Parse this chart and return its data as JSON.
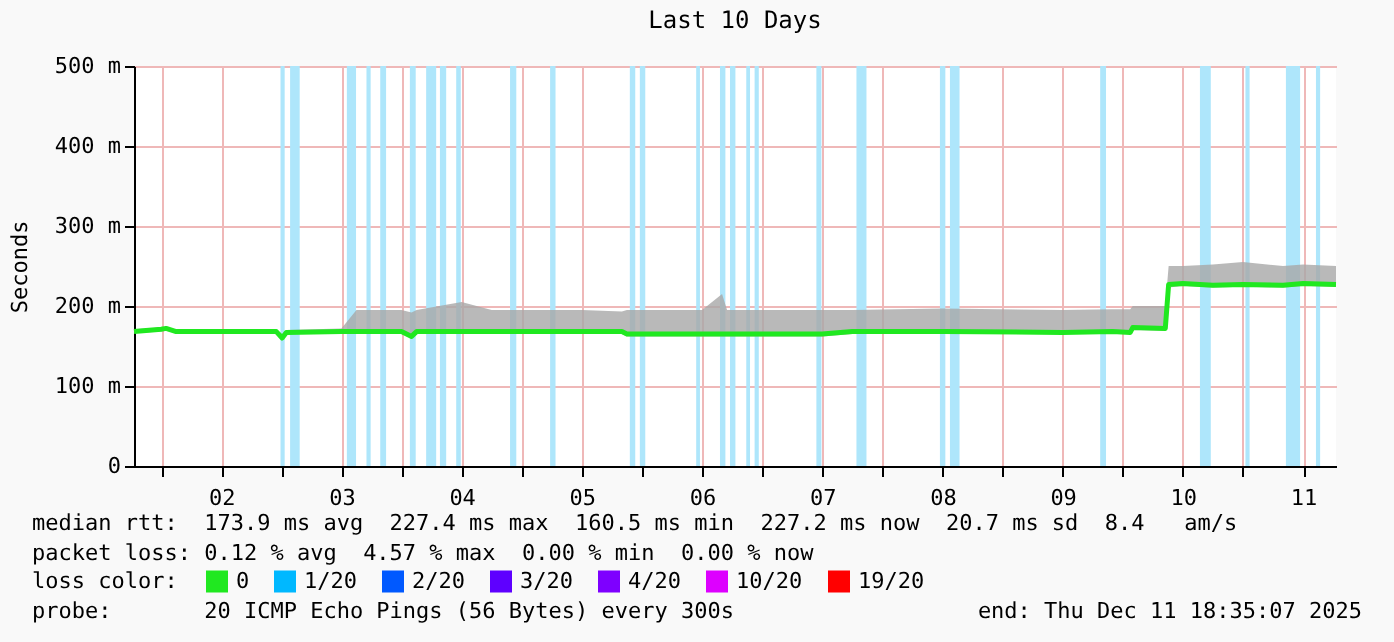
{
  "chart_data": {
    "type": "line",
    "title": "Last 10 Days",
    "ylabel": "Seconds",
    "x": [
      "2025-12-01T18:35",
      "2025-12-02T00:00",
      "2025-12-02T01:00",
      "2025-12-02T03:00",
      "2025-12-02T12:00",
      "2025-12-02T23:00",
      "2025-12-03T00:10",
      "2025-12-03T01:00",
      "2025-12-03T12:00",
      "2025-12-03T15:00",
      "2025-12-04T00:00",
      "2025-12-04T02:00",
      "2025-12-04T03:00",
      "2025-12-04T12:00",
      "2025-12-04T18:00",
      "2025-12-05T12:00",
      "2025-12-05T20:00",
      "2025-12-05T21:00",
      "2025-12-06T12:00",
      "2025-12-06T16:00",
      "2025-12-06T17:00",
      "2025-12-07T12:00",
      "2025-12-07T18:00",
      "2025-12-08T12:00",
      "2025-12-09T12:00",
      "2025-12-09T22:00",
      "2025-12-10T01:30",
      "2025-12-10T02:00",
      "2025-12-10T08:30",
      "2025-12-10T09:10",
      "2025-12-10T12:00",
      "2025-12-10T18:00",
      "2025-12-11T00:00",
      "2025-12-11T08:00",
      "2025-12-11T12:00",
      "2025-12-11T18:35"
    ],
    "series": [
      {
        "name": "0",
        "color": "#20e820",
        "values": [
          168,
          171,
          172,
          168,
          168,
          168,
          160,
          167,
          168,
          168,
          168,
          162,
          168,
          168,
          168,
          168,
          168,
          165,
          165,
          165,
          165,
          165,
          168,
          168,
          167,
          168,
          167,
          173,
          172,
          227,
          228,
          226,
          227,
          226,
          228,
          227
        ],
        "lower": [
          166,
          168,
          169,
          166,
          166,
          166,
          158,
          165,
          166,
          166,
          165,
          160,
          165,
          165,
          165,
          165,
          165,
          162,
          162,
          162,
          162,
          162,
          165,
          165,
          165,
          165,
          165,
          170,
          169,
          223,
          225,
          223,
          224,
          223,
          225,
          224
        ],
        "upper": [
          171,
          173,
          174,
          170,
          171,
          170,
          165,
          170,
          172,
          195,
          195,
          192,
          195,
          205,
          195,
          195,
          193,
          195,
          195,
          215,
          195,
          195,
          195,
          197,
          195,
          196,
          196,
          200,
          200,
          250,
          250,
          252,
          255,
          250,
          252,
          250
        ]
      },
      {
        "name": "1/20",
        "color": "#00b8ff",
        "values": [
          null,
          null,
          null,
          null,
          null,
          null,
          null,
          null,
          null,
          null,
          null,
          null,
          null,
          null,
          null,
          null,
          null,
          null,
          null,
          null,
          null,
          null,
          null,
          null,
          null,
          null,
          null,
          null,
          null,
          null,
          null,
          null,
          null,
          null,
          null,
          null
        ]
      },
      {
        "name": "2/20",
        "color": "#0059ff",
        "values": [
          null,
          null,
          null,
          null,
          null,
          null,
          null,
          null,
          null,
          null,
          null,
          null,
          null,
          null,
          null,
          null,
          null,
          null,
          null,
          null,
          null,
          null,
          null,
          null,
          null,
          null,
          null,
          null,
          null,
          null,
          null,
          null,
          null,
          null,
          null,
          null
        ]
      },
      {
        "name": "3/20",
        "color": "#5e00ff",
        "values": [
          null,
          null,
          null,
          null,
          null,
          null,
          null,
          null,
          null,
          null,
          null,
          null,
          null,
          null,
          null,
          null,
          null,
          null,
          null,
          null,
          null,
          null,
          null,
          null,
          null,
          null,
          null,
          null,
          null,
          null,
          null,
          null,
          null,
          null,
          null,
          null
        ]
      },
      {
        "name": "4/20",
        "color": "#7e00ff",
        "values": [
          null,
          null,
          null,
          null,
          null,
          null,
          null,
          null,
          null,
          null,
          null,
          null,
          null,
          null,
          null,
          null,
          null,
          null,
          null,
          null,
          null,
          null,
          null,
          null,
          null,
          null,
          null,
          null,
          null,
          null,
          null,
          null,
          null,
          null,
          null,
          null
        ]
      },
      {
        "name": "10/20",
        "color": "#dd00ff",
        "values": [
          null,
          null,
          null,
          null,
          null,
          null,
          null,
          null,
          null,
          null,
          null,
          null,
          null,
          null,
          null,
          null,
          null,
          null,
          null,
          null,
          null,
          null,
          null,
          null,
          null,
          null,
          null,
          null,
          null,
          null,
          null,
          null,
          null,
          null,
          null,
          null
        ]
      },
      {
        "name": "19/20",
        "color": "#ff0000",
        "values": [
          null,
          null,
          null,
          null,
          null,
          null,
          null,
          null,
          null,
          null,
          null,
          null,
          null,
          null,
          null,
          null,
          null,
          null,
          null,
          null,
          null,
          null,
          null,
          null,
          null,
          null,
          null,
          null,
          null,
          null,
          null,
          null,
          null,
          null,
          null,
          null
        ]
      }
    ],
    "legend_title": "loss color:",
    "legend": "bottom left",
    "xlim": [
      "2025-12-01T18:35",
      "2025-12-11T18:35"
    ],
    "xticks": [
      {
        "value": "2025-12-02T00:00",
        "label": null
      },
      {
        "value": "2025-12-02T12:00",
        "label": "02"
      },
      {
        "value": "2025-12-03T00:00",
        "label": null
      },
      {
        "value": "2025-12-03T12:00",
        "label": "03"
      },
      {
        "value": "2025-12-04T00:00",
        "label": null
      },
      {
        "value": "2025-12-04T12:00",
        "label": "04"
      },
      {
        "value": "2025-12-05T00:00",
        "label": null
      },
      {
        "value": "2025-12-05T12:00",
        "label": "05"
      },
      {
        "value": "2025-12-06T00:00",
        "label": null
      },
      {
        "value": "2025-12-06T12:00",
        "label": "06"
      },
      {
        "value": "2025-12-07T00:00",
        "label": null
      },
      {
        "value": "2025-12-07T12:00",
        "label": "07"
      },
      {
        "value": "2025-12-08T00:00",
        "label": null
      },
      {
        "value": "2025-12-08T12:00",
        "label": "08"
      },
      {
        "value": "2025-12-09T00:00",
        "label": null
      },
      {
        "value": "2025-12-09T12:00",
        "label": "09"
      },
      {
        "value": "2025-12-10T00:00",
        "label": null
      },
      {
        "value": "2025-12-10T12:00",
        "label": "10"
      },
      {
        "value": "2025-12-11T00:00",
        "label": null
      },
      {
        "value": "2025-12-11T12:00",
        "label": "11"
      }
    ],
    "ylim": [
      0,
      500
    ],
    "yticks": [
      0,
      {
        "value": 100,
        "label": "100 m"
      },
      {
        "value": 200,
        "label": "200 m"
      },
      {
        "value": 300,
        "label": "300 m"
      },
      {
        "value": 400,
        "label": "400 m"
      },
      {
        "value": 500,
        "label": "500 m"
      }
    ],
    "grid": true,
    "bands": [
      {
        "axis": "x",
        "from": "2025-12-02T23:50",
        "to": "2025-12-03T00:40",
        "color": "#aee6fb"
      },
      {
        "axis": "x",
        "from": "2025-12-03T01:45",
        "to": "2025-12-03T03:40",
        "color": "#aee6fb"
      },
      {
        "axis": "x",
        "from": "2025-12-03T13:05",
        "to": "2025-12-03T14:55",
        "color": "#aee6fb"
      },
      {
        "axis": "x",
        "from": "2025-12-03T17:00",
        "to": "2025-12-03T17:50",
        "color": "#aee6fb"
      },
      {
        "axis": "x",
        "from": "2025-12-03T19:45",
        "to": "2025-12-03T20:55",
        "color": "#aee6fb"
      },
      {
        "axis": "x",
        "from": "2025-12-04T01:40",
        "to": "2025-12-04T02:50",
        "color": "#aee6fb"
      },
      {
        "axis": "x",
        "from": "2025-12-04T04:55",
        "to": "2025-12-04T06:55",
        "color": "#aee6fb"
      },
      {
        "axis": "x",
        "from": "2025-12-04T07:40",
        "to": "2025-12-04T08:55",
        "color": "#aee6fb"
      },
      {
        "axis": "x",
        "from": "2025-12-04T10:55",
        "to": "2025-12-04T11:50",
        "color": "#aee6fb"
      },
      {
        "axis": "x",
        "from": "2025-12-04T21:40",
        "to": "2025-12-04T22:55",
        "color": "#aee6fb"
      },
      {
        "axis": "x",
        "from": "2025-12-05T05:40",
        "to": "2025-12-05T06:45",
        "color": "#aee6fb"
      },
      {
        "axis": "x",
        "from": "2025-12-05T21:35",
        "to": "2025-12-05T22:40",
        "color": "#aee6fb"
      },
      {
        "axis": "x",
        "from": "2025-12-05T23:35",
        "to": "2025-12-06T00:40",
        "color": "#aee6fb"
      },
      {
        "axis": "x",
        "from": "2025-12-06T10:50",
        "to": "2025-12-06T11:35",
        "color": "#aee6fb"
      },
      {
        "axis": "x",
        "from": "2025-12-06T15:35",
        "to": "2025-12-06T16:40",
        "color": "#aee6fb"
      },
      {
        "axis": "x",
        "from": "2025-12-06T17:35",
        "to": "2025-12-06T18:40",
        "color": "#aee6fb"
      },
      {
        "axis": "x",
        "from": "2025-12-06T20:50",
        "to": "2025-12-06T21:35",
        "color": "#aee6fb"
      },
      {
        "axis": "x",
        "from": "2025-12-06T22:30",
        "to": "2025-12-06T23:20",
        "color": "#aee6fb"
      },
      {
        "axis": "x",
        "from": "2025-12-07T10:50",
        "to": "2025-12-07T11:50",
        "color": "#aee6fb"
      },
      {
        "axis": "x",
        "from": "2025-12-07T18:50",
        "to": "2025-12-07T20:50",
        "color": "#aee6fb"
      },
      {
        "axis": "x",
        "from": "2025-12-08T11:30",
        "to": "2025-12-08T12:35",
        "color": "#aee6fb"
      },
      {
        "axis": "x",
        "from": "2025-12-08T13:30",
        "to": "2025-12-08T15:25",
        "color": "#aee6fb"
      },
      {
        "axis": "x",
        "from": "2025-12-09T19:30",
        "to": "2025-12-09T20:40",
        "color": "#aee6fb"
      },
      {
        "axis": "x",
        "from": "2025-12-10T15:25",
        "to": "2025-12-10T17:35",
        "color": "#aee6fb"
      },
      {
        "axis": "x",
        "from": "2025-12-11T00:30",
        "to": "2025-12-11T01:20",
        "color": "#aee6fb"
      },
      {
        "axis": "x",
        "from": "2025-12-11T08:35",
        "to": "2025-12-11T11:25",
        "color": "#aee6fb"
      },
      {
        "axis": "x",
        "from": "2025-12-11T14:35",
        "to": "2025-12-11T15:25",
        "color": "#aee6fb"
      }
    ],
    "annotations": [
      "median rtt:  173.9 ms avg  227.4 ms max  160.5 ms min  227.2 ms now  20.7 ms sd  8.4   am/s",
      "packet loss: 0.12 % avg  4.57 % max  0.00 % min  0.00 % now",
      "probe:       20 ICMP Echo Pings (56 Bytes) every 300s",
      "end: Thu Dec 11 18:35:07 2025"
    ]
  }
}
